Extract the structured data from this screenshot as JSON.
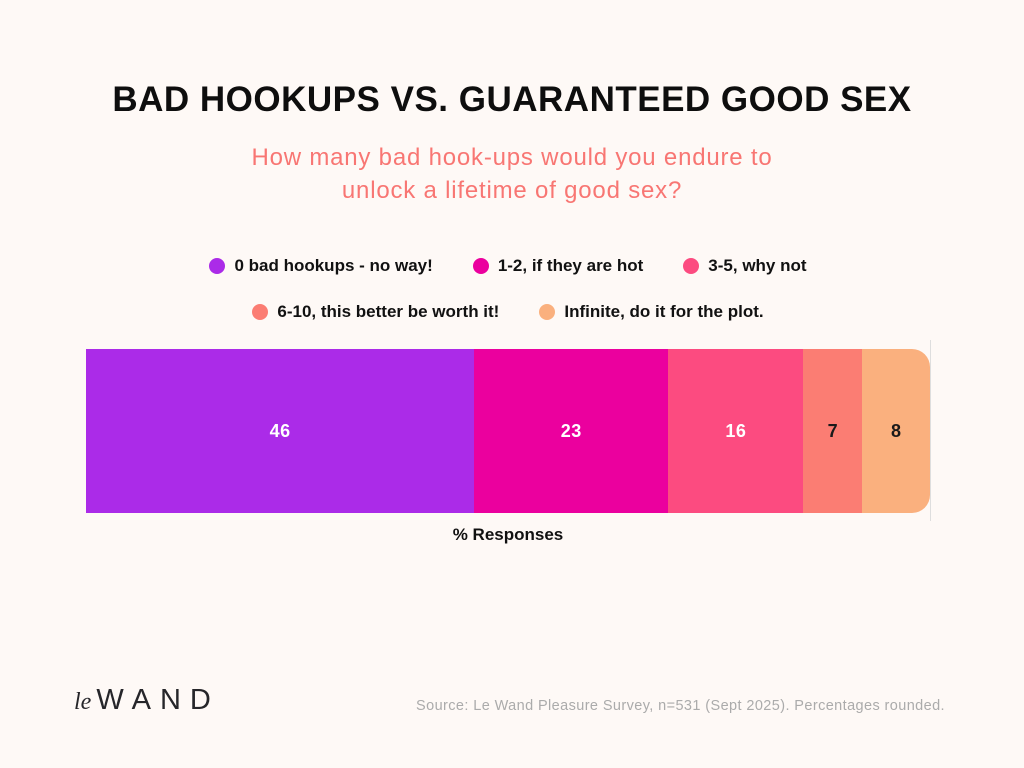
{
  "chart_data": {
    "type": "bar",
    "variant": "horizontal-stacked-single-bar",
    "title": "BAD HOOKUPS VS. GUARANTEED GOOD SEX",
    "subtitle_lines": [
      "How many bad hook-ups would you endure to",
      "unlock a lifetime of good sex?"
    ],
    "xlabel": "% Responses",
    "xlim": [
      0,
      100
    ],
    "unit": "%",
    "legend_position": "top",
    "grid": false,
    "segments": [
      {
        "label": "0 bad hookups - no way!",
        "value": 46,
        "color": "#AB2BE8",
        "value_text_color": "#FFFFFF"
      },
      {
        "label": "1-2, if they are hot",
        "value": 23,
        "color": "#EB009E",
        "value_text_color": "#FFFFFF"
      },
      {
        "label": "3-5, why not",
        "value": 16,
        "color": "#FC4B80",
        "value_text_color": "#FFFFFF"
      },
      {
        "label": "6-10, this better be worth it!",
        "value": 7,
        "color": "#FB7D73",
        "value_text_color": "#1A1A1A"
      },
      {
        "label": "Infinite, do it for the plot.",
        "value": 8,
        "color": "#FAB07E",
        "value_text_color": "#1A1A1A"
      }
    ],
    "legend_rows": [
      [
        0,
        1,
        2
      ],
      [
        3,
        4
      ]
    ]
  },
  "colors": {
    "background": "#FEF9F6",
    "title_text": "#0E0E0E",
    "subtitle_text": "#F87673",
    "axis_line": "#DEDEDE",
    "source_text": "#ABABAB"
  },
  "footer": {
    "logo_le": "le",
    "logo_wand": "WAND",
    "source": "Source: Le Wand Pleasure Survey, n=531 (Sept 2025). Percentages rounded."
  }
}
